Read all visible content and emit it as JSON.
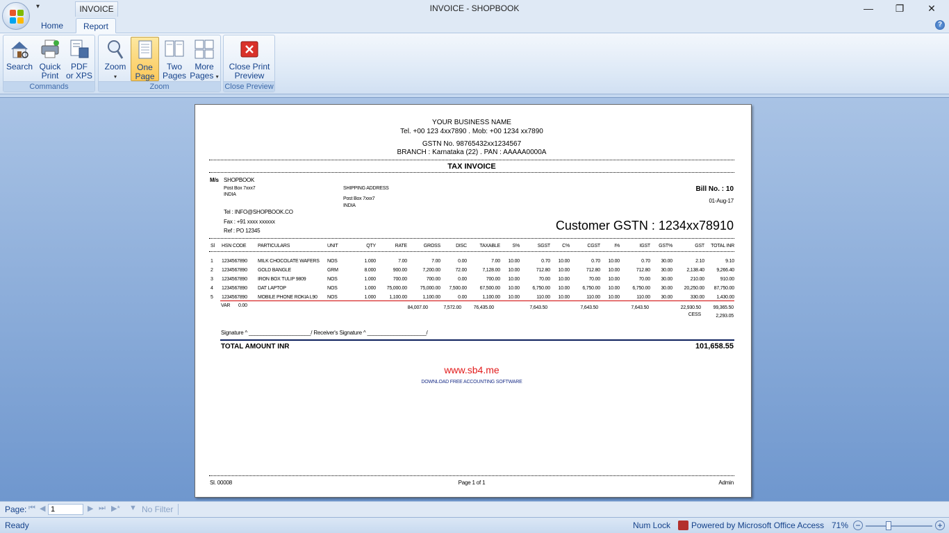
{
  "window": {
    "title": "INVOICE - SHOPBOOK",
    "context_tab": "INVOICE"
  },
  "tabs": [
    {
      "label": "Home"
    },
    {
      "label": "Report"
    }
  ],
  "ribbon": {
    "groups": [
      {
        "label": "Commands",
        "buttons": [
          "Search",
          "Quick Print",
          "PDF or XPS"
        ]
      },
      {
        "label": "Zoom",
        "buttons": [
          "Zoom",
          "One Page",
          "Two Pages",
          "More Pages"
        ]
      },
      {
        "label": "Close Preview",
        "buttons": [
          "Close Print Preview"
        ]
      }
    ],
    "btn": {
      "search_1": "Search",
      "quick_1": "Quick",
      "quick_2": "Print",
      "pdf_1": "PDF",
      "pdf_2": "or XPS",
      "zoom_1": "Zoom",
      "one_1": "One",
      "one_2": "Page",
      "two_1": "Two",
      "two_2": "Pages",
      "more_1": "More",
      "more_2": "Pages",
      "close_1": "Close Print",
      "close_2": "Preview"
    }
  },
  "invoice": {
    "business_name": "YOUR BUSINESS NAME",
    "contact": "Tel. +00 123 4xx7890 . Mob: +00 1234 xx7890",
    "gstn": "GSTN No. 98765432xx1234567",
    "branch": "BRANCH : Karnataka (22) . PAN : AAAAA0000A",
    "doc_title": "TAX INVOICE",
    "ms_label": "M/s",
    "customer_name": "SHOPBOOK",
    "customer_address_1": "Post Box 7xxx7",
    "customer_address_2": "INDIA",
    "shipping_label": "SHIPPING ADDRESS",
    "shipping_address_1": "Post Box 7xxx7",
    "shipping_address_2": "INDIA",
    "bill_no": "Bill No. : 10",
    "bill_date": "01-Aug-17",
    "tel": "Tel : INFO@SHOPBOOK.CO",
    "fax": "Fax : +91 xxxx xxxxxx",
    "ref": "Ref : PO 12345",
    "customer_gstn": "Customer GSTN : 1234xx78910",
    "columns": [
      "Sl",
      "HSN CODE",
      "PARTICULARS",
      "UNIT",
      "QTY",
      "RATE",
      "GROSS",
      "DISC",
      "TAXABLE",
      "S%",
      "SGST",
      "C%",
      "CGST",
      "I%",
      "IGST",
      "GST%",
      "GST",
      "TOTAL INR"
    ],
    "rows": [
      [
        "1",
        "1234567890",
        "MILK CHOCOLATE WAFERS",
        "NOS",
        "1.000",
        "7.00",
        "7.00",
        "0.00",
        "7.00",
        "10.00",
        "0.70",
        "10.00",
        "0.70",
        "10.00",
        "0.70",
        "30.00",
        "2.10",
        "9.10"
      ],
      [
        "2",
        "1234567890",
        "GOLD BANGLE",
        "GRM",
        "8.000",
        "900.00",
        "7,200.00",
        "72.00",
        "7,128.00",
        "10.00",
        "712.80",
        "10.00",
        "712.80",
        "10.00",
        "712.80",
        "30.00",
        "2,138.40",
        "9,266.40"
      ],
      [
        "3",
        "1234567890",
        "IRON BOX TULIP 9809",
        "NOS",
        "1.000",
        "700.00",
        "700.00",
        "0.00",
        "700.00",
        "10.00",
        "70.00",
        "10.00",
        "70.00",
        "10.00",
        "70.00",
        "30.00",
        "210.00",
        "910.00"
      ],
      [
        "4",
        "1234567890",
        "DAT LAPTOP",
        "NOS",
        "1.000",
        "75,000.00",
        "75,000.00",
        "7,500.00",
        "67,500.00",
        "10.00",
        "6,750.00",
        "10.00",
        "6,750.00",
        "10.00",
        "6,750.00",
        "30.00",
        "20,250.00",
        "87,750.00"
      ],
      [
        "5",
        "1234567890",
        "MOBILE PHONE ROKIA L90",
        "NOS",
        "1.000",
        "1,100.00",
        "1,100.00",
        "0.00",
        "1,100.00",
        "10.00",
        "110.00",
        "10.00",
        "110.00",
        "10.00",
        "110.00",
        "30.00",
        "330.00",
        "1,430.00"
      ]
    ],
    "var_label": "VAR",
    "var_value": "0.00",
    "totals": {
      "gross": "84,007.00",
      "disc": "7,572.00",
      "taxable": "76,435.00",
      "sgst": "7,643.50",
      "cgst": "7,643.50",
      "igst": "7,643.50",
      "gst": "22,930.50",
      "total": "99,365.50",
      "cess_label": "CESS",
      "cess": "2,293.05"
    },
    "signature_line": "Signature ^ _____________________/ Receiver's Signature ^ ____________________/",
    "total_amount_label": "TOTAL AMOUNT INR",
    "total_amount_value": "101,658.55",
    "website": "www.sb4.me",
    "tagline": "DOWNLOAD FREE ACCOUNTING SOFTWARE",
    "footer_sl": "Sl.  00008",
    "footer_page": "Page 1 of 1",
    "footer_user": "Admin"
  },
  "navbar": {
    "page_label": "Page:",
    "page_value": "1",
    "filter_label": "No Filter"
  },
  "statusbar": {
    "left": "Ready",
    "numlock": "Num Lock",
    "powered": "Powered by Microsoft Office Access",
    "zoom": "71%",
    "zoom_level_percent": 71
  }
}
